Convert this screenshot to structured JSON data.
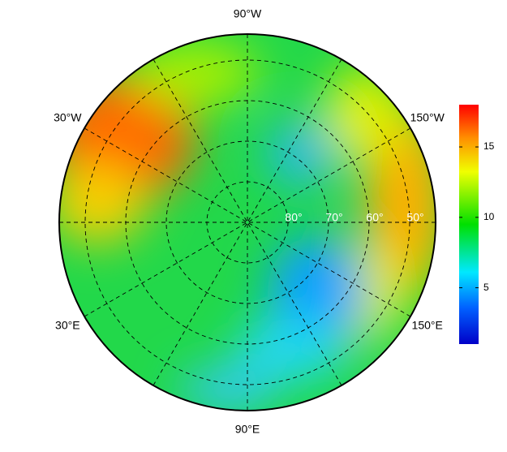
{
  "map": {
    "longitude_labels": [
      "90°W",
      "150°W",
      "150°E",
      "90°E",
      "30°E",
      "30°W"
    ],
    "latitude_labels": [
      "80°",
      "70°",
      "60°",
      "50°"
    ]
  },
  "colorbar": {
    "lim": [
      1,
      18
    ],
    "ticks": [
      5,
      10,
      15
    ]
  }
}
